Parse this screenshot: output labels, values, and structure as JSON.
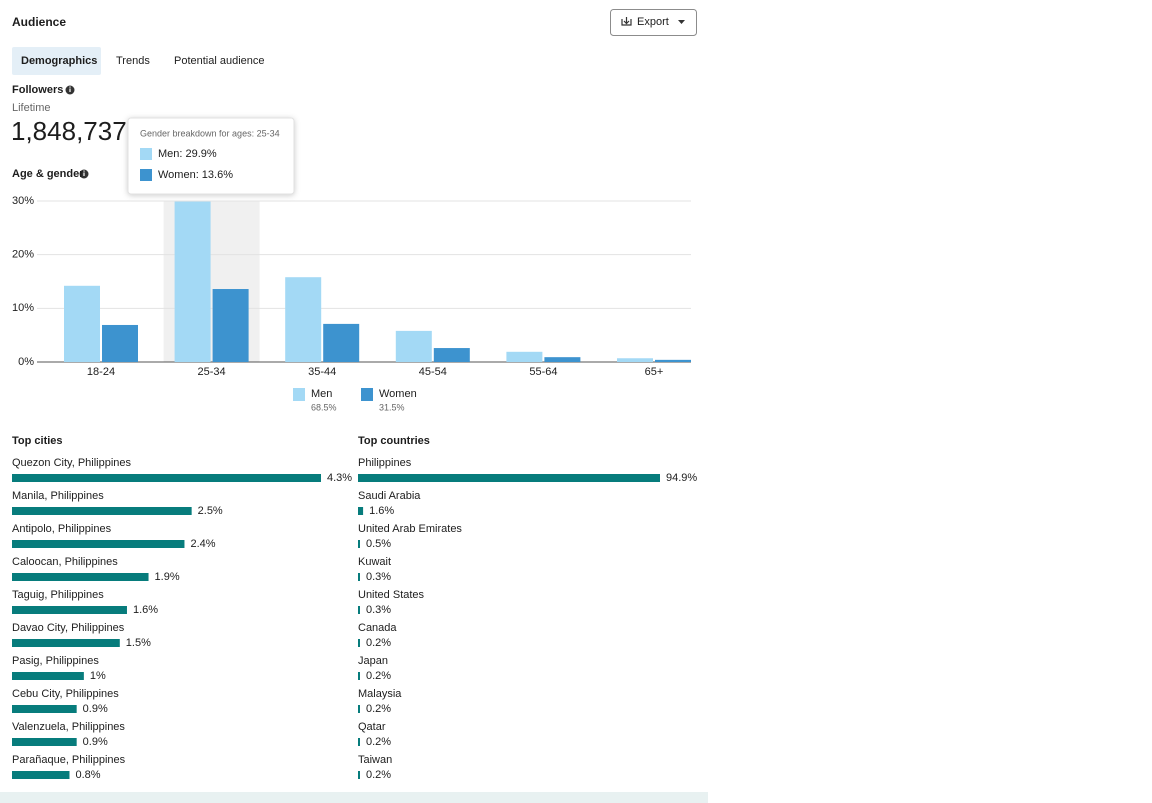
{
  "header": {
    "title": "Audience",
    "export": "Export"
  },
  "tabs": [
    "Demographics",
    "Trends",
    "Potential audience"
  ],
  "active_tab": 0,
  "followers": {
    "label": "Followers",
    "period": "Lifetime",
    "total": "1,848,737"
  },
  "tooltip": {
    "title": "Gender breakdown for ages: 25-34",
    "items": [
      "Men: 29.9%",
      "Women: 13.6%"
    ]
  },
  "chart_data": [
    {
      "type": "bar",
      "title": "Age & gender",
      "categories": [
        "18-24",
        "25-34",
        "35-44",
        "45-54",
        "55-64",
        "65+"
      ],
      "highlight": 1,
      "series": [
        {
          "name": "Men",
          "share": "68.5%",
          "color": "#a3d9f5",
          "values": [
            14.2,
            29.9,
            15.8,
            5.8,
            1.9,
            0.7
          ]
        },
        {
          "name": "Women",
          "share": "31.5%",
          "color": "#3d93cf",
          "values": [
            6.9,
            13.6,
            7.1,
            2.6,
            0.9,
            0.4
          ]
        }
      ],
      "ylim": [
        0,
        30
      ],
      "yticks": [
        {
          "value": 0,
          "label": "0%"
        },
        {
          "value": 10,
          "label": "10%"
        },
        {
          "value": 20,
          "label": "20%"
        },
        {
          "value": 30,
          "label": "30%"
        }
      ],
      "grid": true
    },
    {
      "type": "hbar",
      "title": "Top cities",
      "color": "#077c7c",
      "categories": [
        "Quezon City, Philippines",
        "Manila, Philippines",
        "Antipolo, Philippines",
        "Caloocan, Philippines",
        "Taguig, Philippines",
        "Davao City, Philippines",
        "Pasig, Philippines",
        "Cebu City, Philippines",
        "Valenzuela, Philippines",
        "Parañaque, Philippines"
      ],
      "values": [
        4.3,
        2.5,
        2.4,
        1.9,
        1.6,
        1.5,
        1,
        0.9,
        0.9,
        0.8
      ],
      "value_labels": [
        "4.3%",
        "2.5%",
        "2.4%",
        "1.9%",
        "1.6%",
        "1.5%",
        "1%",
        "0.9%",
        "0.9%",
        "0.8%"
      ]
    },
    {
      "type": "hbar",
      "title": "Top countries",
      "color": "#077c7c",
      "categories": [
        "Philippines",
        "Saudi Arabia",
        "United Arab Emirates",
        "Kuwait",
        "United States",
        "Canada",
        "Japan",
        "Malaysia",
        "Qatar",
        "Taiwan"
      ],
      "values": [
        94.9,
        1.6,
        0.5,
        0.3,
        0.3,
        0.2,
        0.2,
        0.2,
        0.2,
        0.2
      ],
      "value_labels": [
        "94.9%",
        "1.6%",
        "0.5%",
        "0.3%",
        "0.3%",
        "0.2%",
        "0.2%",
        "0.2%",
        "0.2%",
        "0.2%"
      ]
    }
  ]
}
